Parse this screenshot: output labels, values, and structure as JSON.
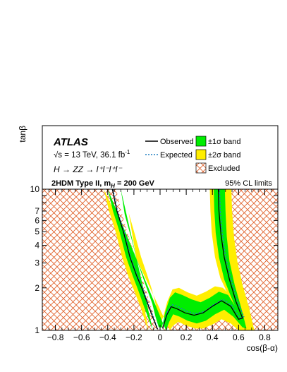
{
  "chart_data": {
    "type": "area",
    "title": "",
    "xlabel": "cos(β-α)",
    "ylabel": "tanβ",
    "xlim": [
      -0.9,
      0.9
    ],
    "ylim": [
      1,
      10
    ],
    "ylog": true,
    "x_ticks": [
      {
        "v": -0.8,
        "label": "−0.8"
      },
      {
        "v": -0.6,
        "label": "−0.6"
      },
      {
        "v": -0.4,
        "label": "−0.4"
      },
      {
        "v": -0.2,
        "label": "−0.2"
      },
      {
        "v": 0,
        "label": "0"
      },
      {
        "v": 0.2,
        "label": "0.2"
      },
      {
        "v": 0.4,
        "label": "0.4"
      },
      {
        "v": 0.6,
        "label": "0.6"
      },
      {
        "v": 0.8,
        "label": "0.8"
      }
    ],
    "y_ticks": [
      {
        "v": 1,
        "label": "1"
      },
      {
        "v": 2,
        "label": "2"
      },
      {
        "v": 3,
        "label": "3"
      },
      {
        "v": 4,
        "label": "4"
      },
      {
        "v": 5,
        "label": "5"
      },
      {
        "v": 6,
        "label": "6"
      },
      {
        "v": 7,
        "label": "7"
      },
      {
        "v": 10,
        "label": "10"
      }
    ],
    "header": {
      "atlas": "ATLAS",
      "energy_line": "√s = 13 TeV, 36.1 fb",
      "lumi_sup": "-1",
      "process": "H → ZZ → l⁺l⁻l⁺l⁻",
      "model": "2HDM Type II,  m",
      "model_sub": "H",
      "model_tail": " = 200 GeV",
      "cl": "95% CL limits"
    },
    "legend": {
      "placement": "top",
      "observed": "Observed",
      "expected": "Expected",
      "band1": "±1σ band",
      "band2": "±2σ band",
      "excluded": "Excluded"
    },
    "colors": {
      "band1": "#00ee00",
      "band2": "#ffee00",
      "hatch": "#e0622c",
      "observed": "#000000",
      "expected": "#1f7fc0"
    },
    "exclusion_boundary": {
      "left_branch": [
        [
          -0.335,
          10
        ],
        [
          -0.3,
          7.2
        ],
        [
          -0.26,
          5.3
        ],
        [
          -0.2,
          3.6
        ],
        [
          -0.16,
          2.7
        ],
        [
          -0.12,
          2.1
        ],
        [
          -0.08,
          1.6
        ],
        [
          -0.05,
          1.3
        ],
        [
          -0.025,
          1.08
        ],
        [
          -0.01,
          1
        ]
      ],
      "right_branch": [
        [
          0.01,
          1
        ],
        [
          0.03,
          1.2
        ],
        [
          0.06,
          1.5
        ],
        [
          0.1,
          1.72
        ],
        [
          0.16,
          1.62
        ],
        [
          0.22,
          1.48
        ],
        [
          0.29,
          1.43
        ],
        [
          0.36,
          1.5
        ],
        [
          0.43,
          1.7
        ],
        [
          0.5,
          1.95
        ],
        [
          0.57,
          1.75
        ],
        [
          0.62,
          1.45
        ],
        [
          0.64,
          1.3
        ],
        [
          0.6,
          1.6
        ],
        [
          0.55,
          2.3
        ],
        [
          0.51,
          3.1
        ],
        [
          0.48,
          4.3
        ],
        [
          0.46,
          6
        ],
        [
          0.45,
          10
        ]
      ]
    },
    "observed": {
      "left": [
        [
          -0.365,
          10
        ],
        [
          -0.33,
          7.0
        ],
        [
          -0.28,
          5.0
        ],
        [
          -0.23,
          3.3
        ],
        [
          -0.18,
          2.45
        ],
        [
          -0.135,
          1.95
        ],
        [
          -0.09,
          1.5
        ],
        [
          -0.05,
          1.2
        ],
        [
          -0.02,
          1.02
        ]
      ],
      "right": [
        [
          0.02,
          1.03
        ],
        [
          0.05,
          1.28
        ],
        [
          0.085,
          1.47
        ],
        [
          0.13,
          1.42
        ],
        [
          0.19,
          1.33
        ],
        [
          0.26,
          1.28
        ],
        [
          0.33,
          1.33
        ],
        [
          0.4,
          1.48
        ],
        [
          0.47,
          1.62
        ],
        [
          0.54,
          1.48
        ],
        [
          0.6,
          1.2
        ],
        [
          0.63,
          1.22
        ],
        [
          0.58,
          1.6
        ],
        [
          0.53,
          2.3
        ],
        [
          0.49,
          3.3
        ],
        [
          0.465,
          4.8
        ],
        [
          0.45,
          7
        ],
        [
          0.445,
          10
        ]
      ]
    },
    "expected": {
      "left": [
        [
          -0.36,
          10
        ],
        [
          -0.325,
          7.0
        ],
        [
          -0.275,
          5.0
        ],
        [
          -0.225,
          3.3
        ],
        [
          -0.175,
          2.45
        ],
        [
          -0.13,
          1.95
        ],
        [
          -0.085,
          1.5
        ],
        [
          -0.045,
          1.2
        ],
        [
          -0.018,
          1.02
        ]
      ],
      "right": [
        [
          0.02,
          1.04
        ],
        [
          0.05,
          1.32
        ],
        [
          0.09,
          1.52
        ],
        [
          0.14,
          1.47
        ],
        [
          0.2,
          1.37
        ],
        [
          0.27,
          1.31
        ],
        [
          0.34,
          1.36
        ],
        [
          0.41,
          1.52
        ],
        [
          0.48,
          1.66
        ],
        [
          0.55,
          1.5
        ],
        [
          0.61,
          1.22
        ],
        [
          0.64,
          1.25
        ],
        [
          0.59,
          1.62
        ],
        [
          0.54,
          2.35
        ],
        [
          0.5,
          3.35
        ],
        [
          0.475,
          4.9
        ],
        [
          0.46,
          7
        ],
        [
          0.455,
          10
        ]
      ]
    },
    "band_1sigma": {
      "left": [
        [
          -0.4,
          10
        ],
        [
          -0.36,
          7
        ],
        [
          -0.31,
          5
        ],
        [
          -0.26,
          3.3
        ],
        [
          -0.21,
          2.45
        ],
        [
          -0.165,
          1.9
        ],
        [
          -0.12,
          1.45
        ],
        [
          -0.08,
          1.15
        ],
        [
          -0.055,
          1
        ]
      ],
      "right_outer": [
        [
          0.045,
          1
        ],
        [
          0.07,
          1.15
        ],
        [
          0.1,
          1.3
        ],
        [
          0.15,
          1.25
        ],
        [
          0.21,
          1.17
        ],
        [
          0.28,
          1.12
        ],
        [
          0.35,
          1.17
        ],
        [
          0.42,
          1.3
        ],
        [
          0.49,
          1.4
        ],
        [
          0.56,
          1.25
        ],
        [
          0.63,
          1.05
        ],
        [
          0.66,
          1.03
        ],
        [
          0.62,
          1.45
        ],
        [
          0.57,
          2.1
        ],
        [
          0.53,
          3.1
        ],
        [
          0.51,
          4.6
        ],
        [
          0.5,
          7
        ],
        [
          0.495,
          10
        ]
      ],
      "right_inner": [
        [
          0.41,
          10
        ],
        [
          0.415,
          7
        ],
        [
          0.425,
          4.9
        ],
        [
          0.45,
          3.3
        ],
        [
          0.49,
          2.3
        ],
        [
          0.54,
          1.75
        ],
        [
          0.57,
          1.5
        ],
        [
          0.52,
          1.78
        ],
        [
          0.45,
          1.88
        ],
        [
          0.38,
          1.7
        ],
        [
          0.31,
          1.58
        ],
        [
          0.24,
          1.66
        ],
        [
          0.17,
          1.78
        ],
        [
          0.115,
          1.86
        ],
        [
          0.075,
          1.7
        ],
        [
          0.04,
          1.35
        ],
        [
          0.015,
          1.05
        ],
        [
          -0.01,
          1.05
        ],
        [
          -0.035,
          1.25
        ],
        [
          -0.06,
          1.55
        ],
        [
          -0.09,
          1.85
        ],
        [
          -0.13,
          2.35
        ],
        [
          -0.175,
          3.1
        ],
        [
          -0.22,
          4.5
        ],
        [
          -0.27,
          6.6
        ],
        [
          -0.3,
          10
        ]
      ]
    },
    "band_2sigma": {
      "left": [
        [
          -0.43,
          10
        ],
        [
          -0.39,
          7
        ],
        [
          -0.34,
          5
        ],
        [
          -0.29,
          3.3
        ],
        [
          -0.245,
          2.45
        ],
        [
          -0.195,
          1.88
        ],
        [
          -0.145,
          1.42
        ],
        [
          -0.11,
          1.12
        ],
        [
          -0.09,
          1
        ]
      ],
      "right_outer": [
        [
          0.075,
          1
        ],
        [
          0.1,
          1.08
        ],
        [
          0.14,
          1.15
        ],
        [
          0.2,
          1.08
        ],
        [
          0.27,
          1.03
        ],
        [
          0.33,
          1.03
        ],
        [
          0.4,
          1.1
        ],
        [
          0.47,
          1.2
        ],
        [
          0.54,
          1.12
        ],
        [
          0.6,
          1
        ],
        [
          0.72,
          1
        ],
        [
          0.68,
          1.45
        ],
        [
          0.63,
          2.1
        ],
        [
          0.59,
          3.1
        ],
        [
          0.565,
          4.6
        ],
        [
          0.55,
          7
        ],
        [
          0.545,
          10
        ]
      ],
      "right_inner": [
        [
          0.38,
          10
        ],
        [
          0.385,
          7
        ],
        [
          0.395,
          4.9
        ],
        [
          0.42,
          3.3
        ],
        [
          0.46,
          2.35
        ],
        [
          0.51,
          1.88
        ],
        [
          0.48,
          2.0
        ],
        [
          0.42,
          2.05
        ],
        [
          0.35,
          1.88
        ],
        [
          0.28,
          1.76
        ],
        [
          0.21,
          1.86
        ],
        [
          0.145,
          2.0
        ],
        [
          0.095,
          1.95
        ],
        [
          0.055,
          1.6
        ],
        [
          0.025,
          1.25
        ],
        [
          0.0,
          1.1
        ],
        [
          -0.02,
          1.3
        ],
        [
          -0.04,
          1.62
        ],
        [
          -0.065,
          1.98
        ],
        [
          -0.1,
          2.5
        ],
        [
          -0.145,
          3.3
        ],
        [
          -0.19,
          4.7
        ],
        [
          -0.24,
          6.8
        ],
        [
          -0.27,
          10
        ]
      ]
    }
  }
}
